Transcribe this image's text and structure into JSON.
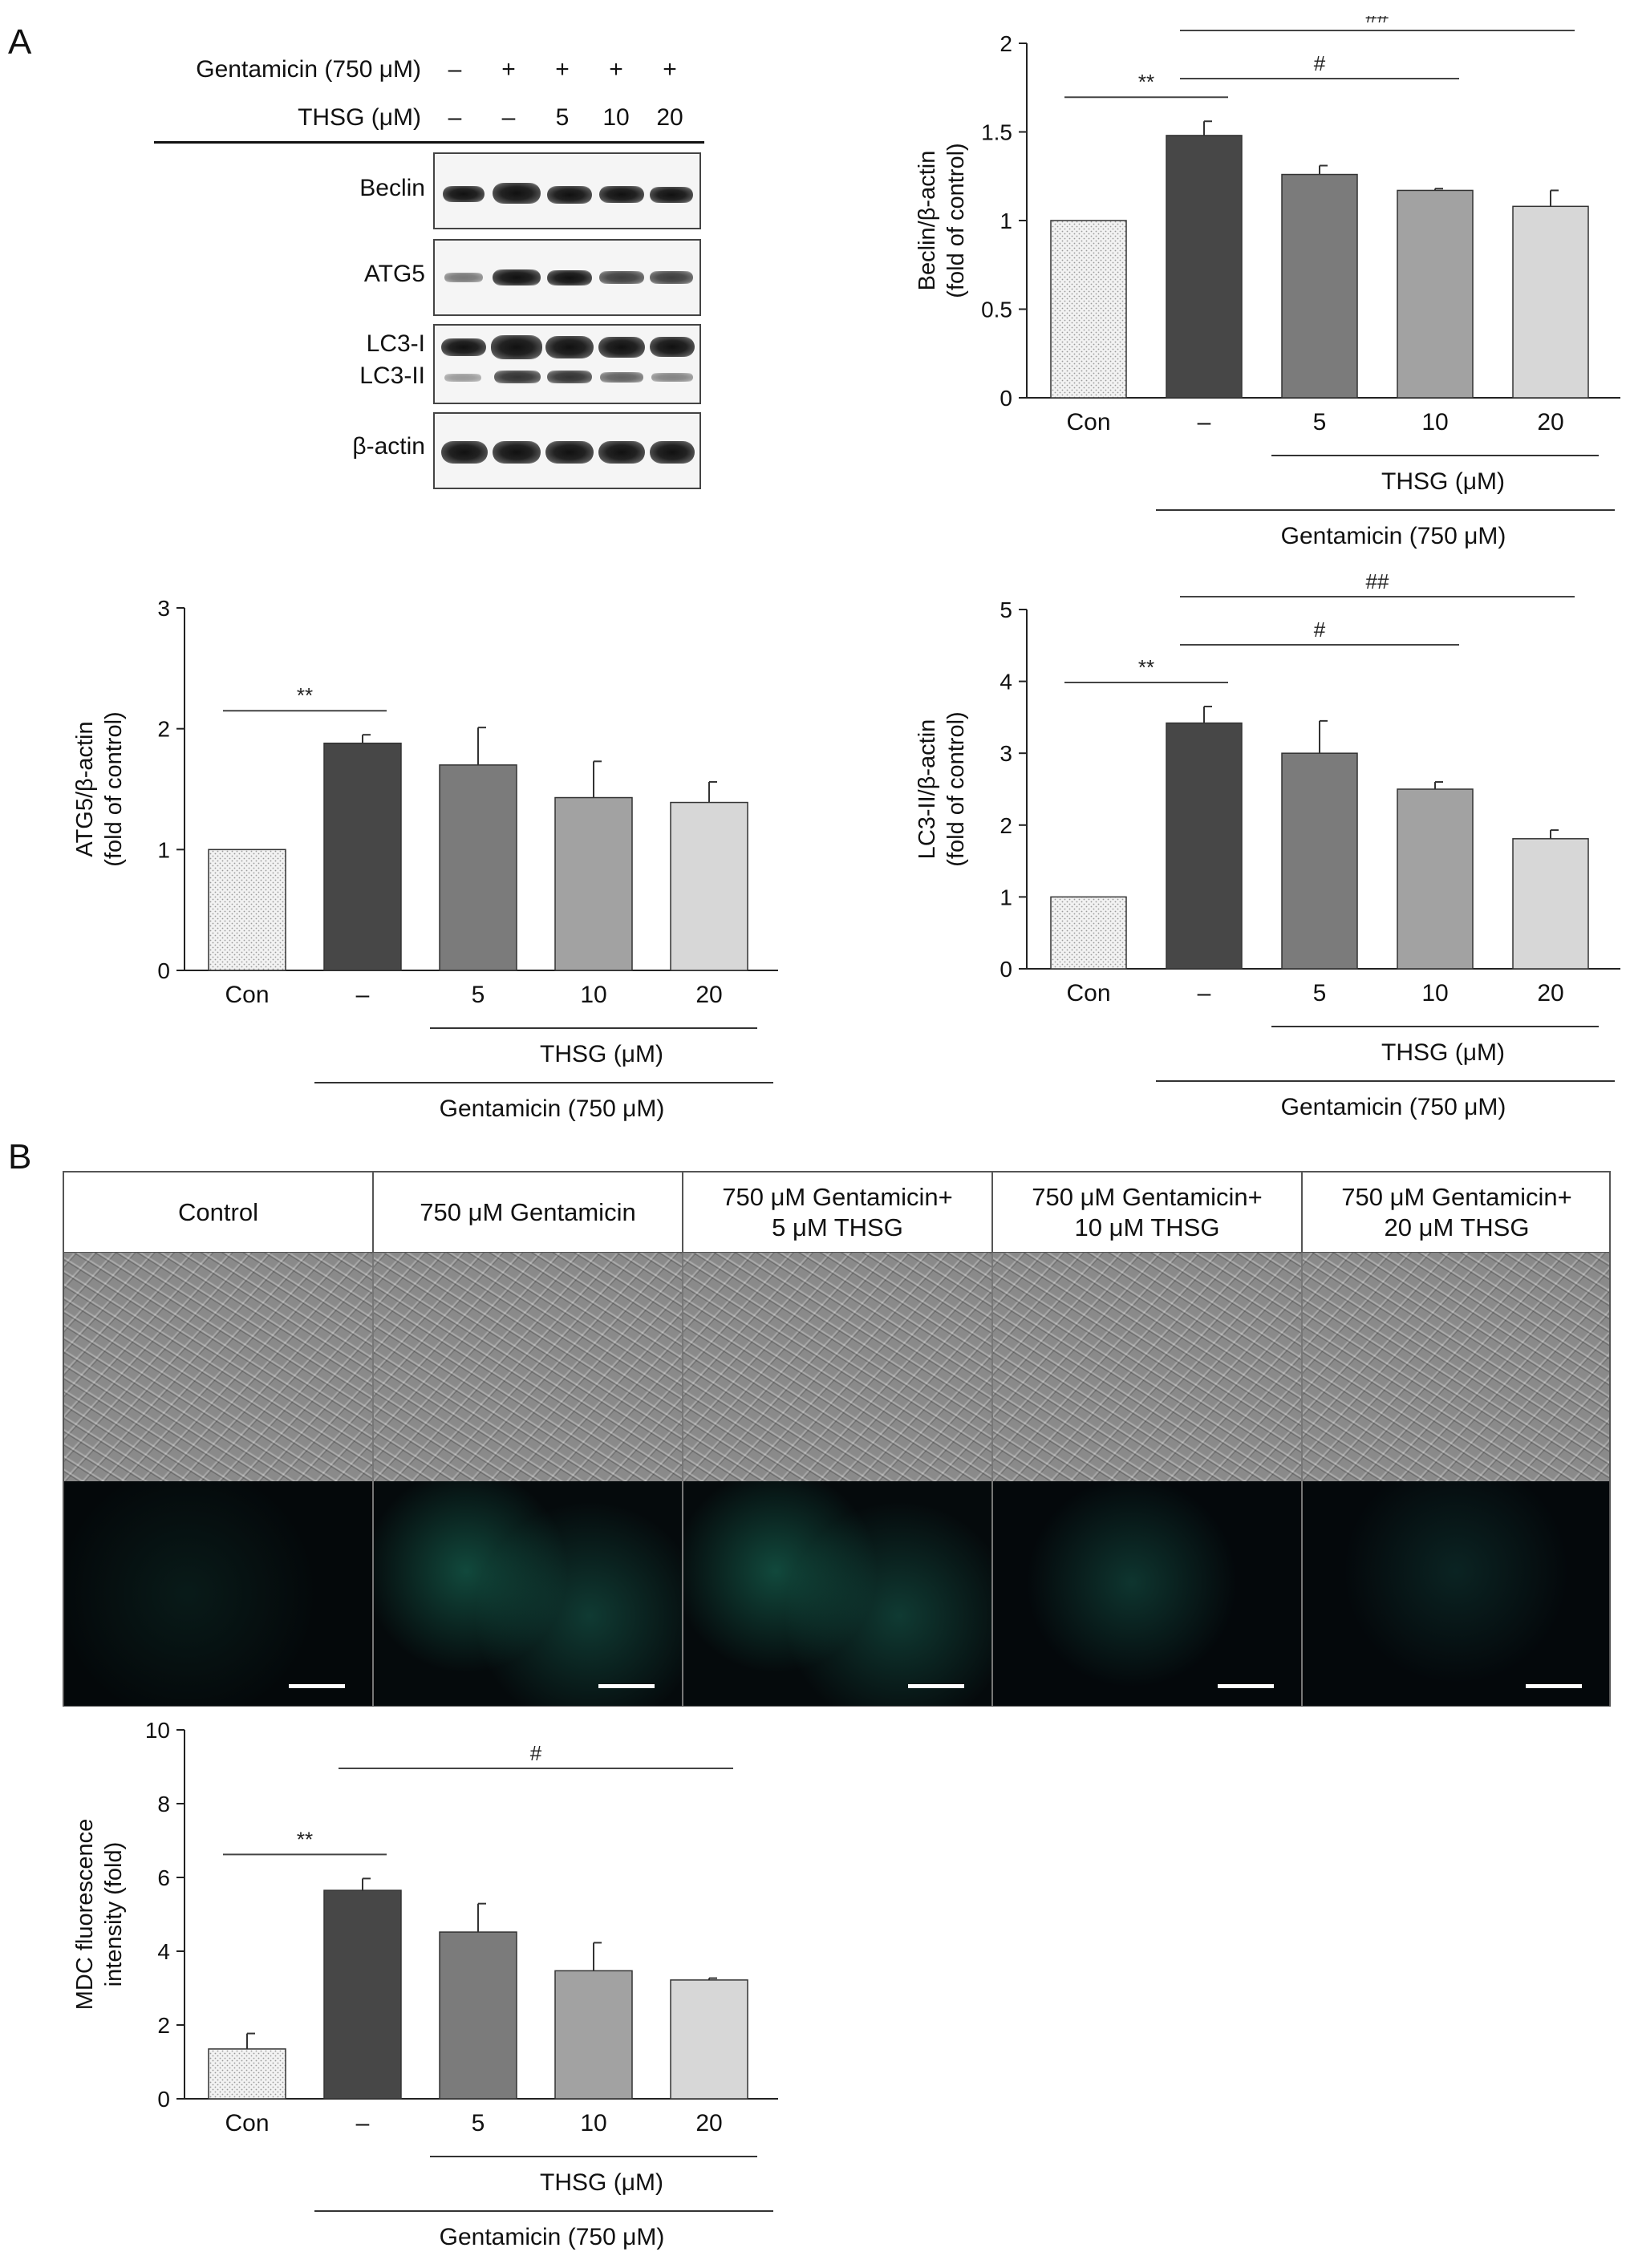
{
  "panels": {
    "a": "A",
    "b": "B"
  },
  "western_blot": {
    "header_rows": [
      {
        "label": "Gentamicin (750 μM)",
        "values": [
          "–",
          "+",
          "+",
          "+",
          "+"
        ]
      },
      {
        "label": "THSG (μM)",
        "values": [
          "–",
          "–",
          "5",
          "10",
          "20"
        ]
      }
    ],
    "bands": [
      {
        "label": "Beclin",
        "second_label": ""
      },
      {
        "label": "ATG5",
        "second_label": ""
      },
      {
        "label": "LC3-I",
        "second_label": "LC3-II"
      },
      {
        "label": "β-actin",
        "second_label": ""
      }
    ]
  },
  "micrographs": {
    "columns": [
      {
        "line1": "Control",
        "line2": ""
      },
      {
        "line1": "750 μM Gentamicin",
        "line2": ""
      },
      {
        "line1": "750 μM Gentamicin+",
        "line2": "5 μM THSG"
      },
      {
        "line1": "750 μM Gentamicin+",
        "line2": "10 μM THSG"
      },
      {
        "line1": "750 μM Gentamicin+",
        "line2": "20 μM THSG"
      }
    ]
  },
  "chart_data": [
    {
      "id": "beclin",
      "type": "bar",
      "ylabel_lines": [
        "Beclin/β-actin",
        "(fold of control)"
      ],
      "ylim": [
        0,
        2
      ],
      "yticks": [
        "0",
        "0.5",
        "1",
        "1.5",
        "2"
      ],
      "ytick_values": [
        0,
        0.5,
        1,
        1.5,
        2
      ],
      "categories": [
        "Con",
        "–",
        "5",
        "10",
        "20"
      ],
      "values": [
        1.0,
        1.48,
        1.26,
        1.17,
        1.08
      ],
      "errors": [
        0,
        0.08,
        0.05,
        0.01,
        0.09
      ],
      "thsg_label": "THSG (μM)",
      "gentamicin_label": "Gentamicin (750 μM)",
      "significance": [
        {
          "label": "**",
          "from": 0,
          "to": 1,
          "level": 1
        },
        {
          "label": "#",
          "from": 1,
          "to": 3,
          "level": 2
        },
        {
          "label": "##",
          "from": 1,
          "to": 4,
          "level": 3
        }
      ]
    },
    {
      "id": "atg5",
      "type": "bar",
      "ylabel_lines": [
        "ATG5/β-actin",
        "(fold of control)"
      ],
      "ylim": [
        0,
        3
      ],
      "yticks": [
        "0",
        "1",
        "2",
        "3"
      ],
      "ytick_values": [
        0,
        1,
        2,
        3
      ],
      "categories": [
        "Con",
        "–",
        "5",
        "10",
        "20"
      ],
      "values": [
        1.0,
        1.88,
        1.7,
        1.43,
        1.39
      ],
      "errors": [
        0,
        0.07,
        0.31,
        0.3,
        0.17
      ],
      "thsg_label": "THSG (μM)",
      "gentamicin_label": "Gentamicin (750 μM)",
      "significance": [
        {
          "label": "**",
          "from": 0,
          "to": 1,
          "level": 1
        }
      ]
    },
    {
      "id": "lc3",
      "type": "bar",
      "ylabel_lines": [
        "LC3-II/β-actin",
        "(fold of control)"
      ],
      "ylim": [
        0,
        5
      ],
      "yticks": [
        "0",
        "1",
        "2",
        "3",
        "4",
        "5"
      ],
      "ytick_values": [
        0,
        1,
        2,
        3,
        4,
        5
      ],
      "categories": [
        "Con",
        "–",
        "5",
        "10",
        "20"
      ],
      "values": [
        1.0,
        3.42,
        3.0,
        2.5,
        1.81
      ],
      "errors": [
        0,
        0.23,
        0.45,
        0.1,
        0.12
      ],
      "thsg_label": "THSG (μM)",
      "gentamicin_label": "Gentamicin (750 μM)",
      "significance": [
        {
          "label": "**",
          "from": 0,
          "to": 1,
          "level": 1
        },
        {
          "label": "#",
          "from": 1,
          "to": 3,
          "level": 2
        },
        {
          "label": "##",
          "from": 1,
          "to": 4,
          "level": 3
        }
      ]
    },
    {
      "id": "mdc",
      "type": "bar",
      "ylabel_lines": [
        "MDC fluorescence",
        "intensity (fold)"
      ],
      "ylim": [
        0,
        10
      ],
      "yticks": [
        "0",
        "2",
        "4",
        "6",
        "8",
        "10"
      ],
      "ytick_values": [
        0,
        2,
        4,
        6,
        8,
        10
      ],
      "categories": [
        "Con",
        "–",
        "5",
        "10",
        "20"
      ],
      "values": [
        1.35,
        5.65,
        4.52,
        3.47,
        3.22
      ],
      "errors": [
        0.42,
        0.32,
        0.77,
        0.76,
        0.05
      ],
      "thsg_label": "THSG (μM)",
      "gentamicin_label": "Gentamicin (750 μM)",
      "significance": [
        {
          "label": "**",
          "from": 0,
          "to": 1,
          "level": 1
        },
        {
          "label": "#",
          "from": 1,
          "to": 4,
          "level": 2
        }
      ]
    }
  ]
}
